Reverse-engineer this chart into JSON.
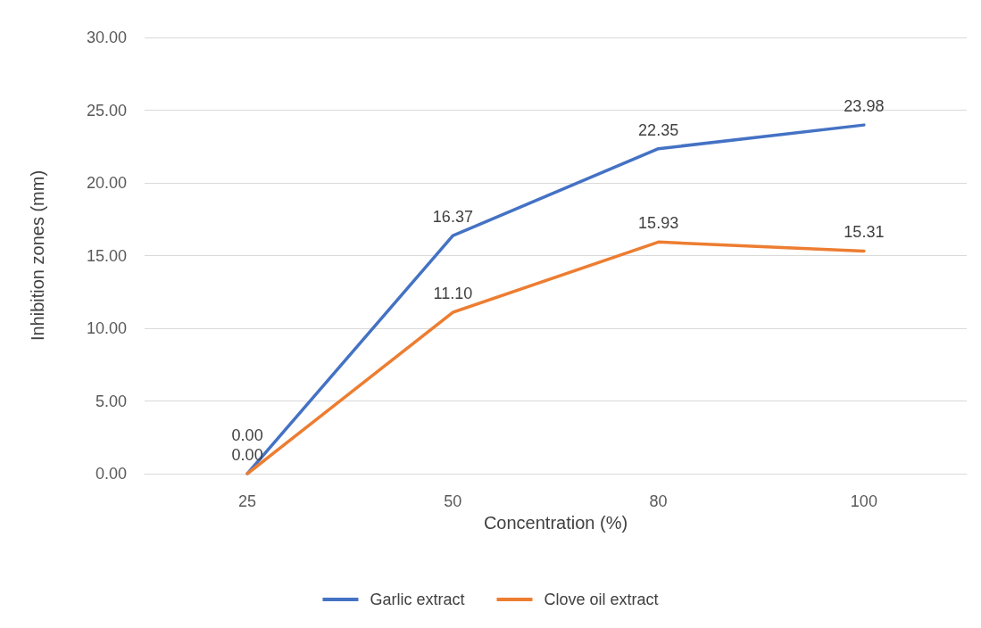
{
  "chart_data": {
    "type": "line",
    "xlabel": "Concentration (%)",
    "ylabel": "Inhibition zones (mm)",
    "categories": [
      "25",
      "50",
      "80",
      "100"
    ],
    "series": [
      {
        "name": "Garlic extract",
        "color": "#4472c4",
        "values": [
          0,
          16.37,
          22.35,
          23.98
        ],
        "value_labels": [
          "0.00",
          "16.37",
          "22.35",
          "23.98"
        ]
      },
      {
        "name": "Clove oil extract",
        "color": "#ed7d31",
        "values": [
          0,
          11.1,
          15.93,
          15.31
        ],
        "value_labels": [
          "0.00",
          "11.10",
          "15.93",
          "15.31"
        ]
      }
    ],
    "ylim": [
      0,
      30
    ],
    "yticks": [
      {
        "value": 0,
        "label": "0.00"
      },
      {
        "value": 5,
        "label": "5.00"
      },
      {
        "value": 10,
        "label": "10.00"
      },
      {
        "value": 15,
        "label": "15.00"
      },
      {
        "value": 20,
        "label": "20.00"
      },
      {
        "value": 25,
        "label": "25.00"
      },
      {
        "value": 30,
        "label": "30.00"
      }
    ],
    "grid": "y",
    "legend": "bottom",
    "marker": "none",
    "line_style": "solid"
  }
}
